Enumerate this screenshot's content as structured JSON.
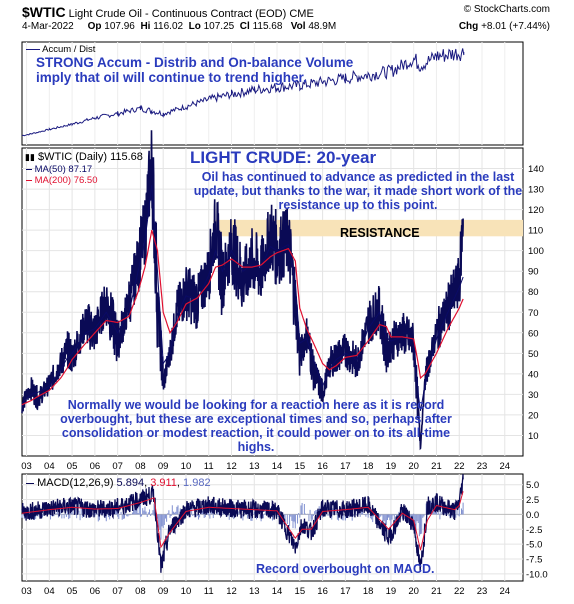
{
  "header": {
    "symbol": "$WTIC",
    "name": "Light Crude Oil - Continuous Contract (EOD)",
    "exchange": "CME",
    "site": "© StockCharts.com",
    "date": "4-Mar-2022",
    "op_label": "Op",
    "op_value": "107.96",
    "hi_label": "Hi",
    "hi_value": "116.02",
    "lo_label": "Lo",
    "lo_value": "107.25",
    "cl_label": "Cl",
    "cl_value": "115.68",
    "vol_label": "Vol",
    "vol_value": "48.9M",
    "chg_label": "Chg",
    "chg_value": "+8.01 (+7.44%)"
  },
  "annotations": {
    "strong": "STRONG Accum - Distrib and On-balance Volume imply that oil will continue to trend higher.",
    "title": "LIGHT CRUDE: 20-year",
    "light_crude": "Oil has continued to advance as predicted in the last update, but thanks to the war, it made short work of the resistance up to this point.",
    "resistance": "RESISTANCE",
    "normally": "Normally we would be looking for a reaction here as it is record overbought, but these are exceptional times and so, perhaps after consolidation or modest reaction, it could power on to its all-time highs.",
    "macd_note": "Record overbought on MACD."
  },
  "legends": {
    "accum": "Accum / Dist",
    "price": "$WTIC (Daily) 115.68",
    "ma50": "MA(50) 87.17",
    "ma200": "MA(200) 76.50",
    "macd_label": "MACD(12,26,9)",
    "macd_v1": "5.894",
    "macd_v2": "3.911",
    "macd_v3": "1.982"
  },
  "colors": {
    "price": "#0a0a55",
    "ma50": "#0a0a66",
    "ma200": "#e01030",
    "accum": "#1a1a80",
    "macd": "#0a0a55",
    "signal": "#e01030",
    "histogram": "#8090d0",
    "resistance_band": "#f8e3b8",
    "annotation": "#2a3bbd"
  },
  "chart_data": [
    {
      "type": "line",
      "title": "Accum / Dist",
      "x": [
        2002.8,
        2003.2,
        2004,
        2005,
        2006,
        2007,
        2008,
        2008.5,
        2009,
        2010,
        2011,
        2012,
        2013,
        2014,
        2015,
        2016,
        2017,
        2018,
        2019,
        2020,
        2020.3,
        2021,
        2022.2
      ],
      "series": [
        {
          "name": "Accum / Dist",
          "values": [
            5,
            7,
            12,
            18,
            25,
            30,
            36,
            33,
            30,
            38,
            46,
            52,
            57,
            60,
            62,
            66,
            70,
            74,
            78,
            92,
            85,
            95,
            100
          ]
        }
      ],
      "note": "relative scale, no axis values printed"
    },
    {
      "type": "line",
      "title": "$WTIC (Daily) 115.68",
      "xlabel": "",
      "ylabel": "",
      "xlim": [
        2002.8,
        2024.8
      ],
      "ylim": [
        0,
        150
      ],
      "yticks": [
        10,
        20,
        30,
        40,
        50,
        60,
        70,
        80,
        90,
        100,
        110,
        120,
        130,
        140
      ],
      "xticks": [
        "03",
        "04",
        "05",
        "06",
        "07",
        "08",
        "09",
        "10",
        "11",
        "12",
        "13",
        "14",
        "15",
        "16",
        "17",
        "18",
        "19",
        "20",
        "21",
        "22",
        "23",
        "24"
      ],
      "resistance_band": [
        107,
        115
      ],
      "x": [
        2002.8,
        2003.2,
        2003.5,
        2004,
        2004.5,
        2004.8,
        2005,
        2005.6,
        2006,
        2006.5,
        2007,
        2007.5,
        2007.9,
        2008.2,
        2008.5,
        2008.75,
        2009,
        2009.3,
        2009.6,
        2010,
        2010.5,
        2011,
        2011.3,
        2011.6,
        2012,
        2012.5,
        2012.9,
        2013.3,
        2013.7,
        2014,
        2014.5,
        2014.8,
        2015,
        2015.3,
        2015.6,
        2016,
        2016.3,
        2016.6,
        2017,
        2017.5,
        2018,
        2018.5,
        2018.8,
        2019,
        2019.5,
        2020,
        2020.2,
        2020.3,
        2020.5,
        2021,
        2021.5,
        2022,
        2022.17
      ],
      "series": [
        {
          "name": "$WTIC (Daily) 115.68",
          "values": [
            25,
            33,
            28,
            35,
            45,
            52,
            48,
            65,
            60,
            76,
            55,
            75,
            95,
            110,
            145,
            75,
            35,
            50,
            70,
            80,
            75,
            90,
            113,
            85,
            103,
            85,
            95,
            90,
            108,
            100,
            105,
            75,
            48,
            60,
            42,
            30,
            45,
            48,
            52,
            45,
            65,
            72,
            50,
            55,
            60,
            55,
            22,
            5,
            38,
            60,
            72,
            85,
            115.68
          ]
        },
        {
          "name": "MA(50) 87.17",
          "values": [
            26,
            30,
            31,
            34,
            42,
            48,
            50,
            60,
            62,
            70,
            60,
            70,
            90,
            105,
            132,
            90,
            45,
            50,
            68,
            78,
            76,
            88,
            100,
            90,
            100,
            90,
            93,
            92,
            102,
            100,
            103,
            85,
            55,
            57,
            47,
            34,
            42,
            47,
            50,
            47,
            62,
            70,
            58,
            56,
            58,
            56,
            30,
            22,
            35,
            57,
            70,
            82,
            87.17
          ]
        },
        {
          "name": "MA(200) 76.50",
          "values": [
            25,
            27,
            29,
            32,
            38,
            43,
            47,
            55,
            60,
            66,
            65,
            68,
            80,
            92,
            110,
            100,
            70,
            60,
            65,
            74,
            77,
            84,
            92,
            93,
            96,
            92,
            92,
            93,
            97,
            99,
            101,
            95,
            72,
            62,
            55,
            45,
            42,
            44,
            48,
            49,
            56,
            64,
            63,
            58,
            58,
            57,
            45,
            38,
            40,
            50,
            62,
            72,
            76.5
          ]
        }
      ]
    },
    {
      "type": "line",
      "title": "MACD(12,26,9)",
      "ylim": [
        -10,
        5
      ],
      "yticks": [
        5.0,
        2.5,
        0.0,
        -2.5,
        -5.0,
        -7.5,
        -10.0
      ],
      "x": [
        2002.8,
        2004,
        2005,
        2006,
        2007,
        2008,
        2008.6,
        2008.9,
        2009.3,
        2010,
        2011,
        2012,
        2013,
        2014,
        2014.8,
        2015.1,
        2015.5,
        2016,
        2017,
        2018,
        2018.9,
        2019.5,
        2020,
        2020.3,
        2020.6,
        2021,
        2021.8,
        2022,
        2022.17
      ],
      "series": [
        {
          "name": "MACD",
          "values": [
            0.3,
            1.0,
            1.4,
            0.8,
            1.2,
            2.5,
            3.5,
            -9.0,
            -2.5,
            0.8,
            1.5,
            1.0,
            0.8,
            0.6,
            -5.5,
            -1.5,
            -3.0,
            1.0,
            0.8,
            1.5,
            -4.0,
            0.5,
            -1.5,
            -9.5,
            1.5,
            2.0,
            0.5,
            2.0,
            5.894
          ]
        },
        {
          "name": "Signal",
          "values": [
            0.2,
            0.8,
            1.2,
            0.9,
            1.0,
            2.0,
            2.8,
            -5.5,
            -3.0,
            0.5,
            1.2,
            1.0,
            0.8,
            0.6,
            -4.0,
            -2.5,
            -2.5,
            0.5,
            0.8,
            1.2,
            -2.5,
            0.2,
            -1.0,
            -6.0,
            -1.0,
            1.5,
            0.8,
            1.5,
            3.911
          ]
        },
        {
          "name": "Histogram",
          "values": [
            0.1,
            0.2,
            0.2,
            -0.1,
            0.2,
            0.5,
            0.7,
            -3.5,
            0.5,
            0.3,
            0.3,
            0.0,
            0.0,
            0.0,
            -1.5,
            1.0,
            -0.5,
            0.5,
            0.0,
            0.3,
            -1.5,
            0.3,
            -0.5,
            -3.5,
            2.5,
            0.5,
            -0.3,
            0.5,
            1.982
          ]
        }
      ]
    }
  ]
}
